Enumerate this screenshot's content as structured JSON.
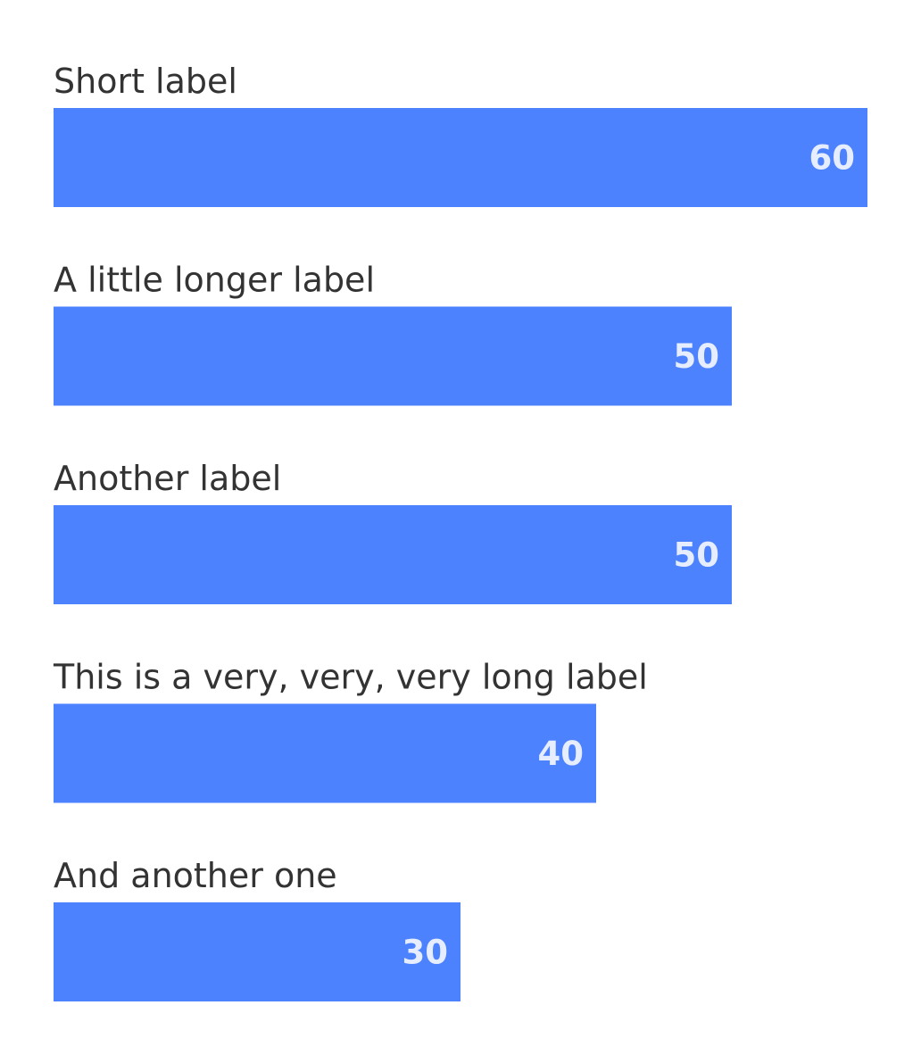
{
  "chart_data": {
    "type": "bar",
    "orientation": "horizontal",
    "title": "",
    "xlabel": "",
    "ylabel": "",
    "categories": [
      "Short label",
      "A little longer label",
      "Another label",
      "This is a very, very, very long label",
      "And another one"
    ],
    "values": [
      60,
      50,
      50,
      40,
      30
    ],
    "xlim": [
      0,
      60
    ],
    "grid": false,
    "legend": "none",
    "data_labels": "inside-end",
    "colors": {
      "bar": "#4d82ff",
      "data_label": "#e6edff",
      "category_label": "#333333"
    }
  }
}
